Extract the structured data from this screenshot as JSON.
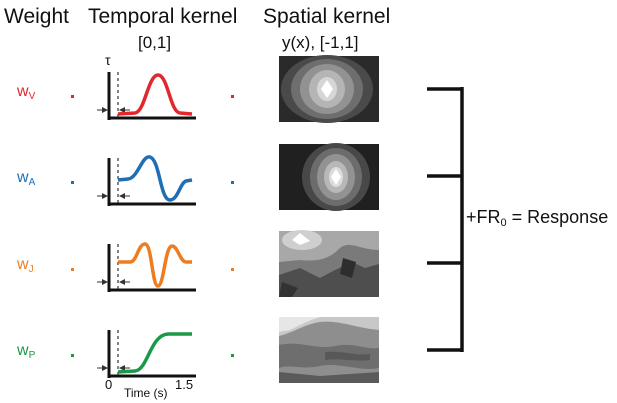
{
  "headers": {
    "weight": "Weight",
    "temporal": "Temporal kernel",
    "temporal_range": "[0,1]",
    "spatial": "Spatial kernel",
    "spatial_range": "y(x), [-1,1]"
  },
  "tau_label": "τ",
  "rows": [
    {
      "w": "w",
      "sub": "V",
      "color": "#e0282d"
    },
    {
      "w": "w",
      "sub": "A",
      "color": "#1f6fb5"
    },
    {
      "w": "w",
      "sub": "J",
      "color": "#ee7d22"
    },
    {
      "w": "w",
      "sub": "P",
      "color": "#1a9a49"
    }
  ],
  "time_axis": {
    "label": "Time (s)",
    "start": "0",
    "end": "1.5"
  },
  "sum_label": {
    "prefix": "+FR",
    "sub": "0",
    "suffix": " = Response"
  }
}
